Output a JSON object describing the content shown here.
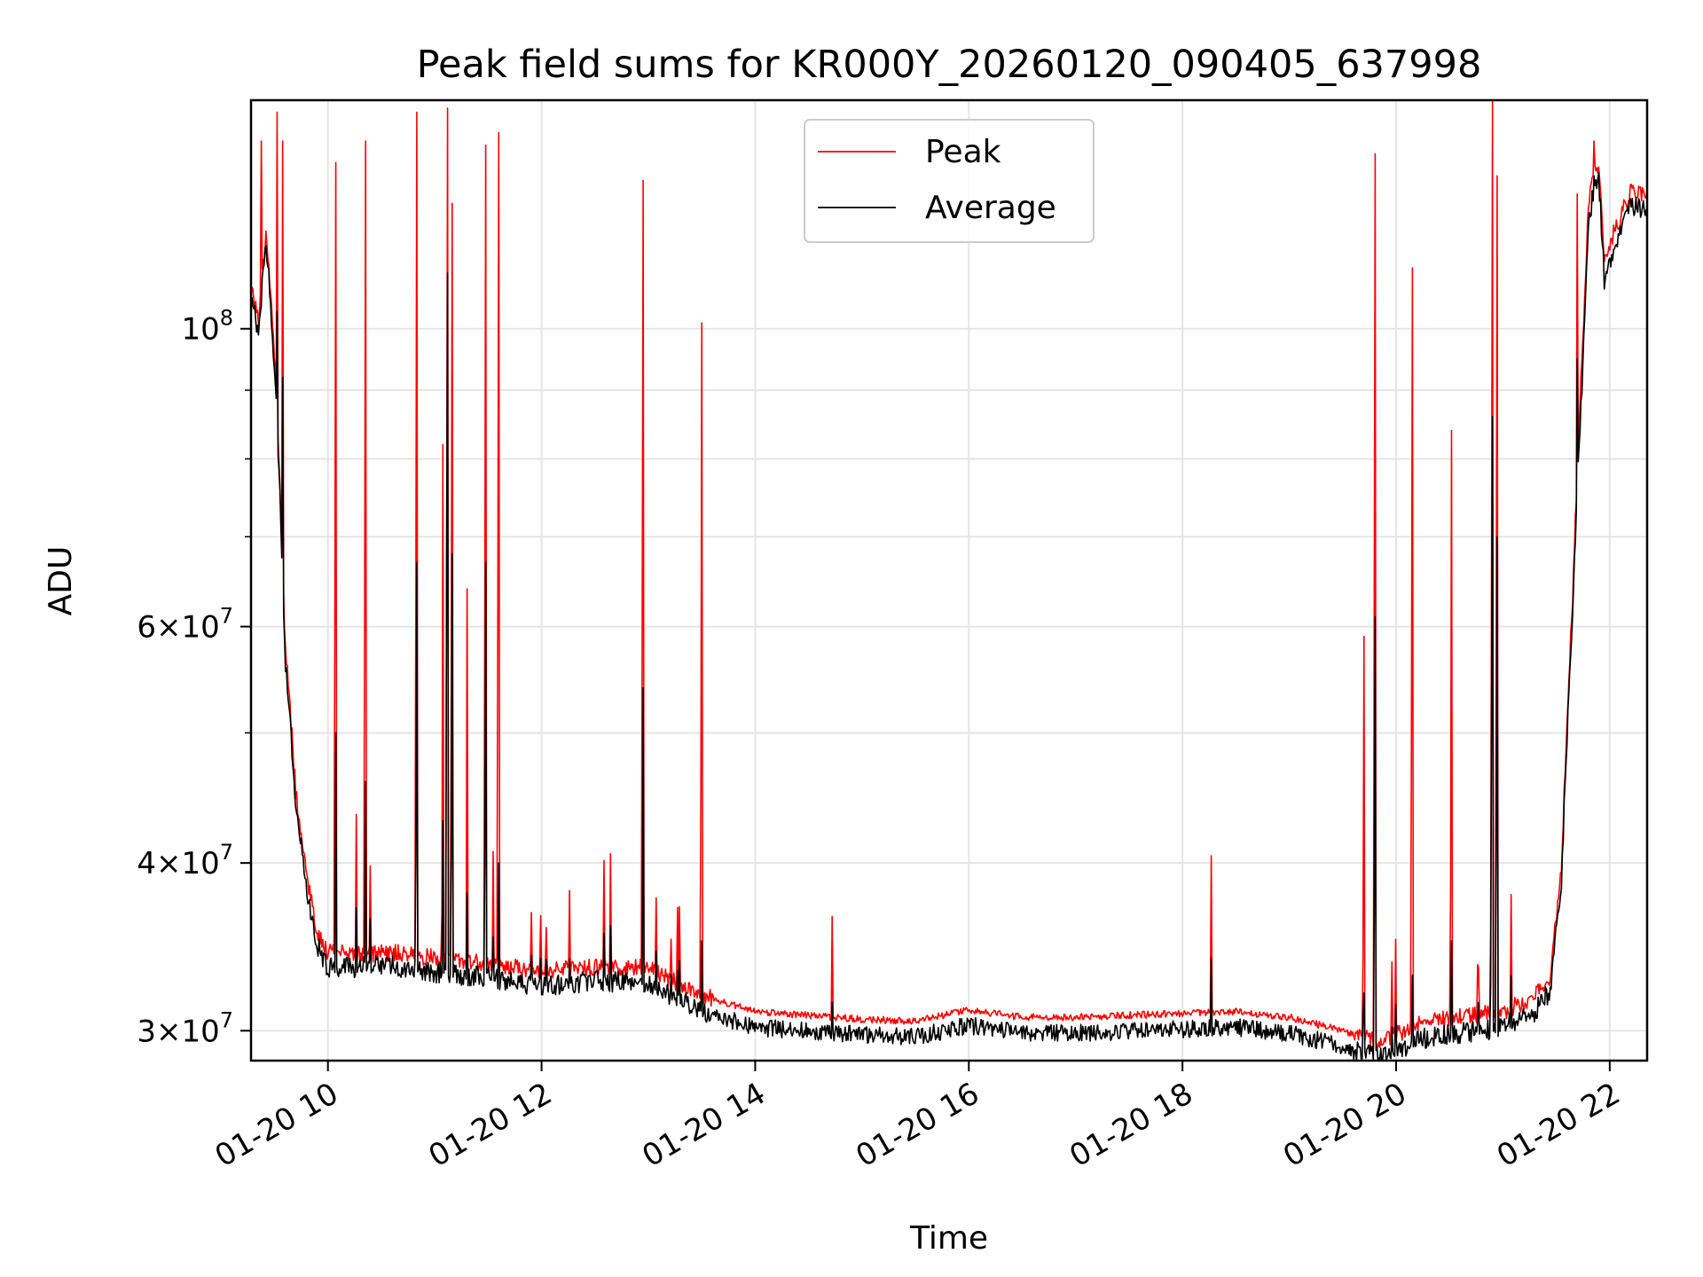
{
  "chart_data": {
    "type": "line",
    "title": "Peak field sums for KR000Y_20260120_090405_637998",
    "xlabel": "Time",
    "ylabel": "ADU",
    "yscale": "log",
    "xlim_hours": [
      9.28,
      22.35
    ],
    "ylim": [
      28500000,
      148000000
    ],
    "grid": true,
    "legend_position": "upper-center",
    "x_ticks": [
      {
        "hour": 10,
        "label": "01-20 10"
      },
      {
        "hour": 12,
        "label": "01-20 12"
      },
      {
        "hour": 14,
        "label": "01-20 14"
      },
      {
        "hour": 16,
        "label": "01-20 16"
      },
      {
        "hour": 18,
        "label": "01-20 18"
      },
      {
        "hour": 20,
        "label": "01-20 20"
      },
      {
        "hour": 22,
        "label": "01-20 22"
      }
    ],
    "y_ticks": [
      {
        "value": 30000000,
        "mantissa": "3",
        "exponent": "7"
      },
      {
        "value": 40000000,
        "mantissa": "4",
        "exponent": "7"
      },
      {
        "value": 60000000,
        "mantissa": "6",
        "exponent": "7"
      },
      {
        "value": 100000000,
        "mantissa": "10",
        "exponent": "8"
      }
    ],
    "y_minor_ticks": [
      50000000,
      70000000,
      80000000,
      90000000
    ],
    "baseline": {
      "hours": [
        9.28,
        9.35,
        9.42,
        9.5,
        9.55,
        9.6,
        9.7,
        9.8,
        9.9,
        10.0,
        10.3,
        10.6,
        11.0,
        11.5,
        12.0,
        12.5,
        13.0,
        13.5,
        14.0,
        14.5,
        15.0,
        15.5,
        16.0,
        16.5,
        17.0,
        17.5,
        18.0,
        18.5,
        19.0,
        19.5,
        19.8,
        20.0,
        20.3,
        20.6,
        21.0,
        21.3,
        21.45,
        21.55,
        21.65,
        21.75,
        21.8,
        21.85,
        21.9,
        21.95,
        22.0,
        22.1,
        22.2,
        22.35
      ],
      "peak": [
        108000000,
        101000000,
        118000000,
        95000000,
        76000000,
        58000000,
        45000000,
        39000000,
        35500000,
        34300000,
        34200000,
        34300000,
        34000000,
        33700000,
        33200000,
        33500000,
        33400000,
        31900000,
        31000000,
        30800000,
        30600000,
        30500000,
        31100000,
        30700000,
        30700000,
        30800000,
        30900000,
        31000000,
        30700000,
        30000000,
        29500000,
        29800000,
        30500000,
        30700000,
        31000000,
        31800000,
        33000000,
        40000000,
        62000000,
        98000000,
        123000000,
        131000000,
        132000000,
        112000000,
        116000000,
        121000000,
        127000000,
        126000000
      ],
      "average": [
        106000000,
        99500000,
        117000000,
        94000000,
        75000000,
        57000000,
        44300000,
        38300000,
        34800000,
        33600000,
        33600000,
        33700000,
        33300000,
        33000000,
        32500000,
        32800000,
        32700000,
        31100000,
        30300000,
        30100000,
        29900000,
        29800000,
        30400000,
        30000000,
        30000000,
        30100000,
        30200000,
        30300000,
        30000000,
        29300000,
        28800000,
        29100000,
        29800000,
        30000000,
        30300000,
        31100000,
        32300000,
        39000000,
        60000000,
        95000000,
        119000000,
        128000000,
        129000000,
        109000000,
        113000000,
        118000000,
        124000000,
        123000000
      ]
    },
    "spikes": [
      {
        "hour": 9.38,
        "peak": 138000000,
        "average": 104000000
      },
      {
        "hour": 9.52,
        "peak": 145000000,
        "average": 103000000
      },
      {
        "hour": 9.58,
        "peak": 138000000,
        "average": 92000000
      },
      {
        "hour": 10.07,
        "peak": 133000000,
        "average": 50000000
      },
      {
        "hour": 10.35,
        "peak": 138000000,
        "average": 46000000
      },
      {
        "hour": 10.83,
        "peak": 145000000,
        "average": 67000000
      },
      {
        "hour": 11.08,
        "peak": 82000000,
        "average": 43000000
      },
      {
        "hour": 11.12,
        "peak": 146000000,
        "average": 110000000
      },
      {
        "hour": 11.16,
        "peak": 124000000,
        "average": 68000000
      },
      {
        "hour": 11.3,
        "peak": 64000000,
        "average": 38000000
      },
      {
        "hour": 11.48,
        "peak": 137000000,
        "average": 67000000
      },
      {
        "hour": 11.6,
        "peak": 140000000,
        "average": 40000000
      },
      {
        "hour": 12.95,
        "peak": 129000000,
        "average": 54000000
      },
      {
        "hour": 13.5,
        "peak": 101000000,
        "average": 35000000
      },
      {
        "hour": 14.72,
        "peak": 36500000,
        "average": 31500000
      },
      {
        "hour": 18.27,
        "peak": 40500000,
        "average": 34000000
      },
      {
        "hour": 19.7,
        "peak": 59000000,
        "average": 32000000
      },
      {
        "hour": 19.8,
        "peak": 135000000,
        "average": 61000000
      },
      {
        "hour": 20.15,
        "peak": 111000000,
        "average": 33000000
      },
      {
        "hour": 20.52,
        "peak": 84000000,
        "average": 35000000
      },
      {
        "hour": 20.9,
        "peak": 148000000,
        "average": 86000000
      },
      {
        "hour": 20.95,
        "peak": 130000000,
        "average": 70000000
      },
      {
        "hour": 21.7,
        "peak": 126000000,
        "average": 95000000
      },
      {
        "hour": 21.85,
        "peak": 138000000,
        "average": 130000000
      }
    ],
    "series": [
      {
        "name": "Peak",
        "color": "#ff0000"
      },
      {
        "name": "Average",
        "color": "#000000"
      }
    ]
  }
}
